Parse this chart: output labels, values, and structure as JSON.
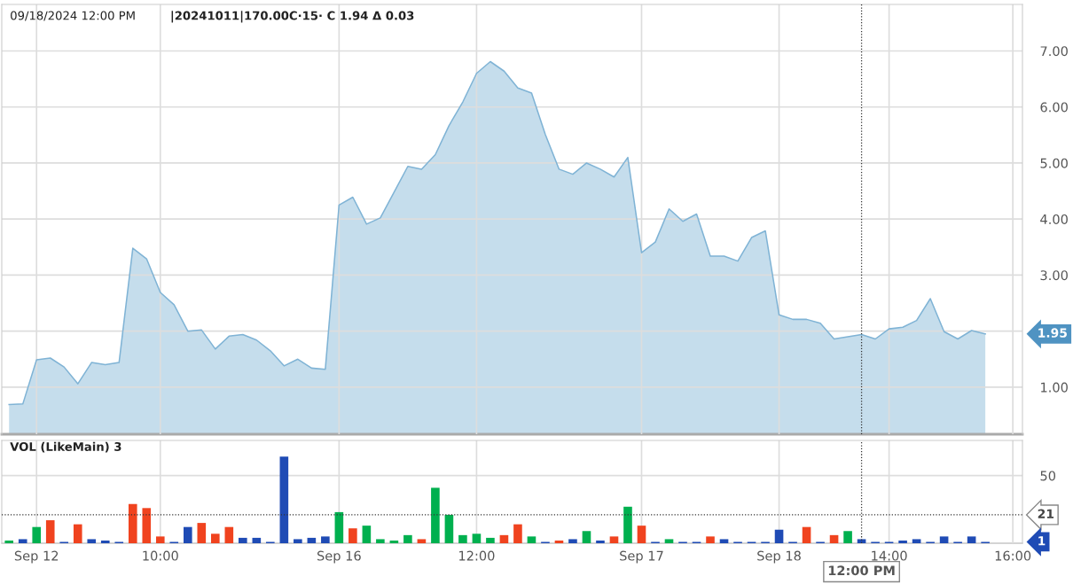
{
  "chart_data": [
    {
      "type": "area",
      "title": "09/18/2024 12:00 PM",
      "subtitle": "|20241011|170.00C·15· C 1.94 Δ 0.03",
      "categories": [
        null,
        null,
        "Sep 12",
        null,
        null,
        null,
        null,
        null,
        null,
        null,
        null,
        "10:00",
        null,
        null,
        null,
        null,
        null,
        null,
        null,
        null,
        null,
        null,
        null,
        null,
        "Sep 16",
        null,
        null,
        null,
        null,
        null,
        null,
        null,
        null,
        null,
        "12:00",
        null,
        null,
        null,
        null,
        null,
        null,
        null,
        null,
        null,
        null,
        null,
        "Sep 17",
        null,
        null,
        null,
        null,
        null,
        null,
        null,
        null,
        null,
        "Sep 18",
        null,
        null,
        null,
        null,
        null,
        "12:00 PM",
        null,
        "14:00",
        null,
        null,
        null,
        null,
        null,
        null,
        null,
        null,
        "16:00"
      ],
      "series": [
        {
          "color": "#7fb3d5",
          "values": [
            0.69,
            0.7,
            1.49,
            1.52,
            1.36,
            1.06,
            1.44,
            1.4,
            1.44,
            3.48,
            3.29,
            2.69,
            2.47,
            2.0,
            2.02,
            1.68,
            1.91,
            1.94,
            1.84,
            1.65,
            1.38,
            1.5,
            1.34,
            1.32,
            4.25,
            4.39,
            3.91,
            4.02,
            4.48,
            4.94,
            4.89,
            5.15,
            5.67,
            6.09,
            6.6,
            6.81,
            6.64,
            6.34,
            6.25,
            5.51,
            4.89,
            4.8,
            5.0,
            4.89,
            4.75,
            5.1,
            3.4,
            3.59,
            4.18,
            3.96,
            4.09,
            3.34,
            3.34,
            3.25,
            3.67,
            3.79,
            2.29,
            2.21,
            2.21,
            2.14,
            1.86,
            1.9,
            1.94,
            1.86,
            2.04,
            2.07,
            2.19,
            2.58,
            1.99,
            1.86,
            2.01,
            1.95,
            null,
            null
          ]
        }
      ],
      "ylim": [
        0.16,
        7.83
      ],
      "yticks": [
        {
          "value": 1,
          "label": "1.00"
        },
        {
          "value": 2,
          "label": null
        },
        {
          "value": 3,
          "label": "3.00"
        },
        {
          "value": 4,
          "label": "4.00"
        },
        {
          "value": 5,
          "label": "5.00"
        },
        {
          "value": 6,
          "label": "6.00"
        },
        {
          "value": 7,
          "label": "7.00"
        }
      ],
      "tick_labels": "y",
      "grid": true,
      "ref_lines": [
        {
          "axis": "x",
          "value": "12:00 PM",
          "line_style": "dotted",
          "color": "#333333"
        }
      ],
      "annotations": [
        "1.95"
      ]
    },
    {
      "type": "bar",
      "title": "VOL (LikeMain) 3",
      "categories": [
        null,
        null,
        "Sep 12",
        null,
        null,
        null,
        null,
        null,
        null,
        null,
        null,
        "10:00",
        null,
        null,
        null,
        null,
        null,
        null,
        null,
        null,
        null,
        null,
        null,
        null,
        "Sep 16",
        null,
        null,
        null,
        null,
        null,
        null,
        null,
        null,
        null,
        "12:00",
        null,
        null,
        null,
        null,
        null,
        null,
        null,
        null,
        null,
        null,
        null,
        "Sep 17",
        null,
        null,
        null,
        null,
        null,
        null,
        null,
        null,
        null,
        "Sep 18",
        null,
        null,
        null,
        null,
        null,
        "12:00 PM",
        null,
        "14:00",
        null,
        null,
        null,
        null,
        null,
        null,
        null,
        null,
        "16:00"
      ],
      "values": [
        2,
        3,
        12,
        17,
        1,
        14,
        3,
        2,
        1,
        29,
        26,
        5,
        1,
        12,
        15,
        7,
        12,
        4,
        4,
        1,
        64,
        3,
        4,
        5,
        23,
        11,
        13,
        3,
        2,
        6,
        3,
        41,
        21,
        6,
        7,
        4,
        6,
        14,
        5,
        1,
        2,
        3,
        9,
        2,
        5,
        27,
        13,
        1,
        3,
        1,
        1,
        5,
        3,
        1,
        1,
        1,
        10,
        1,
        12,
        1,
        6,
        9,
        3,
        1,
        1,
        2,
        3,
        1,
        5,
        1,
        5,
        1,
        null,
        null
      ],
      "colors": [
        "#00b04f",
        "#1f4bb5",
        "#00b04f",
        "#f0431f",
        "#1f4bb5",
        "#f0431f",
        "#1f4bb5",
        "#1f4bb5",
        "#1f4bb5",
        "#f0431f",
        "#f0431f",
        "#f0431f",
        "#1f4bb5",
        "#1f4bb5",
        "#f0431f",
        "#f0431f",
        "#f0431f",
        "#1f4bb5",
        "#1f4bb5",
        "#1f4bb5",
        "#1f4bb5",
        "#1f4bb5",
        "#1f4bb5",
        "#1f4bb5",
        "#00b04f",
        "#f0431f",
        "#00b04f",
        "#00b04f",
        "#00b04f",
        "#00b04f",
        "#f0431f",
        "#00b04f",
        "#00b04f",
        "#00b04f",
        "#00b04f",
        "#00b04f",
        "#f0431f",
        "#f0431f",
        "#00b04f",
        "#1f4bb5",
        "#f0431f",
        "#1f4bb5",
        "#00b04f",
        "#1f4bb5",
        "#f0431f",
        "#00b04f",
        "#f0431f",
        "#1f4bb5",
        "#00b04f",
        "#1f4bb5",
        "#1f4bb5",
        "#f0431f",
        "#1f4bb5",
        "#1f4bb5",
        "#1f4bb5",
        "#1f4bb5",
        "#1f4bb5",
        "#1f4bb5",
        "#f0431f",
        "#1f4bb5",
        "#f0431f",
        "#00b04f",
        "#1f4bb5",
        "#1f4bb5",
        "#1f4bb5",
        "#1f4bb5",
        "#1f4bb5",
        "#1f4bb5",
        "#1f4bb5",
        "#1f4bb5",
        "#1f4bb5",
        "#1f4bb5",
        null,
        null
      ],
      "ylim": [
        0,
        76
      ],
      "yticks": [
        50
      ],
      "grid": true,
      "ref_lines": [
        {
          "axis": "y",
          "value": 21,
          "label": "21",
          "line_style": "dotted",
          "color": "#333333"
        },
        {
          "axis": "x",
          "value": "12:00 PM",
          "line_style": "dotted",
          "color": "#333333"
        }
      ],
      "annotations": [
        "1"
      ]
    }
  ]
}
